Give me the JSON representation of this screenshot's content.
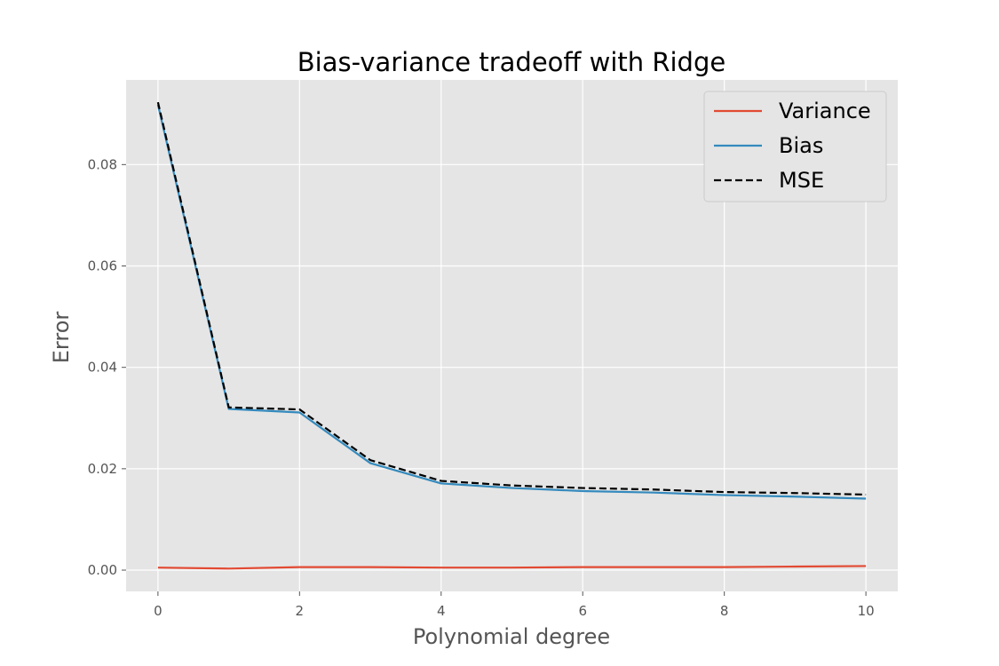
{
  "chart_data": {
    "type": "line",
    "title": "Bias-variance tradeoff with Ridge",
    "xlabel": "Polynomial degree",
    "ylabel": "Error",
    "xlim": [
      -0.45,
      10.45
    ],
    "ylim": [
      -0.0042,
      0.0967
    ],
    "xticks": [
      0,
      2,
      4,
      6,
      8,
      10
    ],
    "yticks": [
      0.0,
      0.02,
      0.04,
      0.06,
      0.08
    ],
    "ytick_labels": [
      "0.00",
      "0.02",
      "0.04",
      "0.06",
      "0.08"
    ],
    "grid": true,
    "style": "ggplot",
    "legend_position": "top-right",
    "x": [
      0,
      1,
      2,
      3,
      4,
      5,
      6,
      7,
      8,
      9,
      10
    ],
    "series": [
      {
        "name": "Variance",
        "color": "#E24A33",
        "dash": "solid",
        "values": [
          0.0005,
          0.0003,
          0.0006,
          0.0006,
          0.0005,
          0.0005,
          0.0006,
          0.0006,
          0.0006,
          0.0007,
          0.0008
        ]
      },
      {
        "name": "Bias",
        "color": "#348ABD",
        "dash": "solid",
        "values": [
          0.0918,
          0.0318,
          0.0311,
          0.0211,
          0.0171,
          0.0162,
          0.0156,
          0.0153,
          0.0148,
          0.0145,
          0.0141
        ]
      },
      {
        "name": "MSE",
        "color": "#000000",
        "dash": "dashed",
        "values": [
          0.0923,
          0.0321,
          0.0317,
          0.0217,
          0.0176,
          0.0167,
          0.0162,
          0.0159,
          0.0154,
          0.0152,
          0.0149
        ]
      }
    ]
  }
}
